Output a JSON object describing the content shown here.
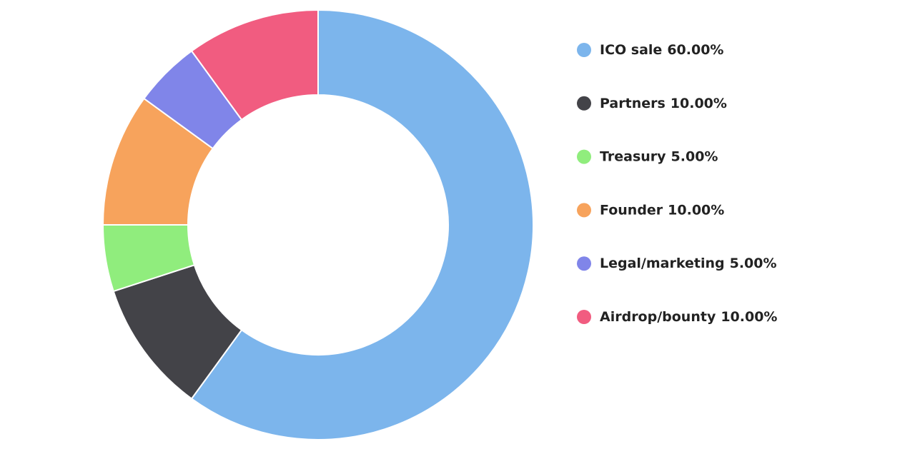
{
  "chart_data": {
    "type": "donut",
    "categories": [
      "ICO sale",
      "Partners",
      "Treasury",
      "Founder",
      "Legal/marketing",
      "Airdrop/bounty"
    ],
    "values": [
      60,
      10,
      5,
      10,
      5,
      10
    ],
    "value_labels": [
      "60.00%",
      "10.00%",
      "5.00%",
      "10.00%",
      "5.00%",
      "10.00%"
    ],
    "colors": [
      "#7cb5ec",
      "#434348",
      "#90ed7d",
      "#f7a35c",
      "#8085e9",
      "#f15c80"
    ],
    "legend": "right"
  }
}
